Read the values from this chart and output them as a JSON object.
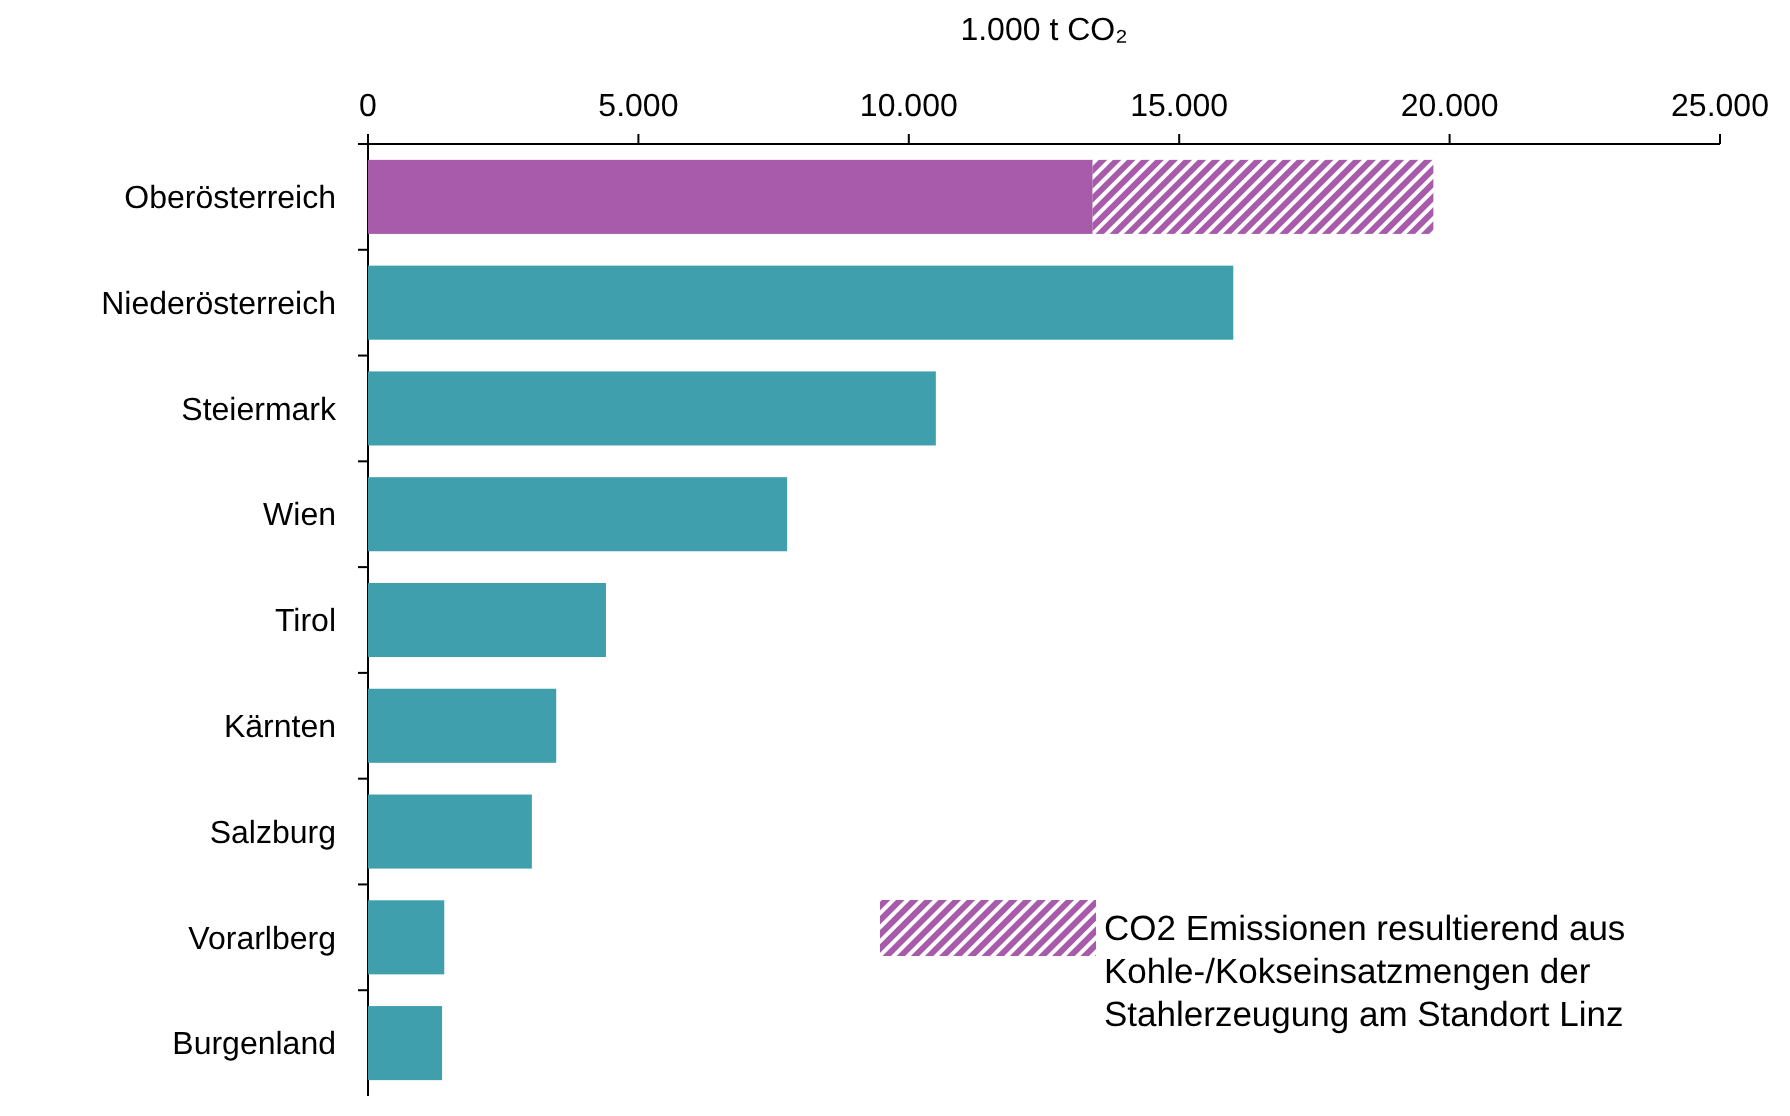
{
  "chart_data": {
    "type": "bar",
    "orientation": "horizontal",
    "stacked": true,
    "xlabel": "1.000 t CO₂",
    "categories": [
      "Oberösterreich",
      "Niederösterreich",
      "Steiermark",
      "Wien",
      "Tirol",
      "Kärnten",
      "Salzburg",
      "Vorarlberg",
      "Burgenland"
    ],
    "series": [
      {
        "colors": [
          "#a85bab",
          "#3f9fad",
          "#3f9fad",
          "#3f9fad",
          "#3f9fad",
          "#3f9fad",
          "#3f9fad",
          "#3f9fad",
          "#3f9fad"
        ],
        "values": [
          13400,
          16000,
          10500,
          7750,
          4400,
          3480,
          3030,
          1410,
          1370
        ]
      },
      {
        "name": "CO2 Emissionen resultierend aus Kohle-/Kokseinsatzmengen der Stahlerzeugung am Standort Linz",
        "color": "#a85bab",
        "values": [
          6300,
          null,
          null,
          null,
          null,
          null,
          null,
          null,
          null
        ]
      }
    ],
    "xlim": [
      0,
      25000
    ],
    "xticks": [
      0,
      {
        "value": 5000,
        "label": "5.000"
      },
      {
        "value": 10000,
        "label": "10.000"
      },
      {
        "value": 15000,
        "label": "15.000"
      },
      {
        "value": 20000,
        "label": "20.000"
      },
      {
        "value": 25000,
        "label": "25.000"
      }
    ],
    "legend": "bottom right"
  }
}
